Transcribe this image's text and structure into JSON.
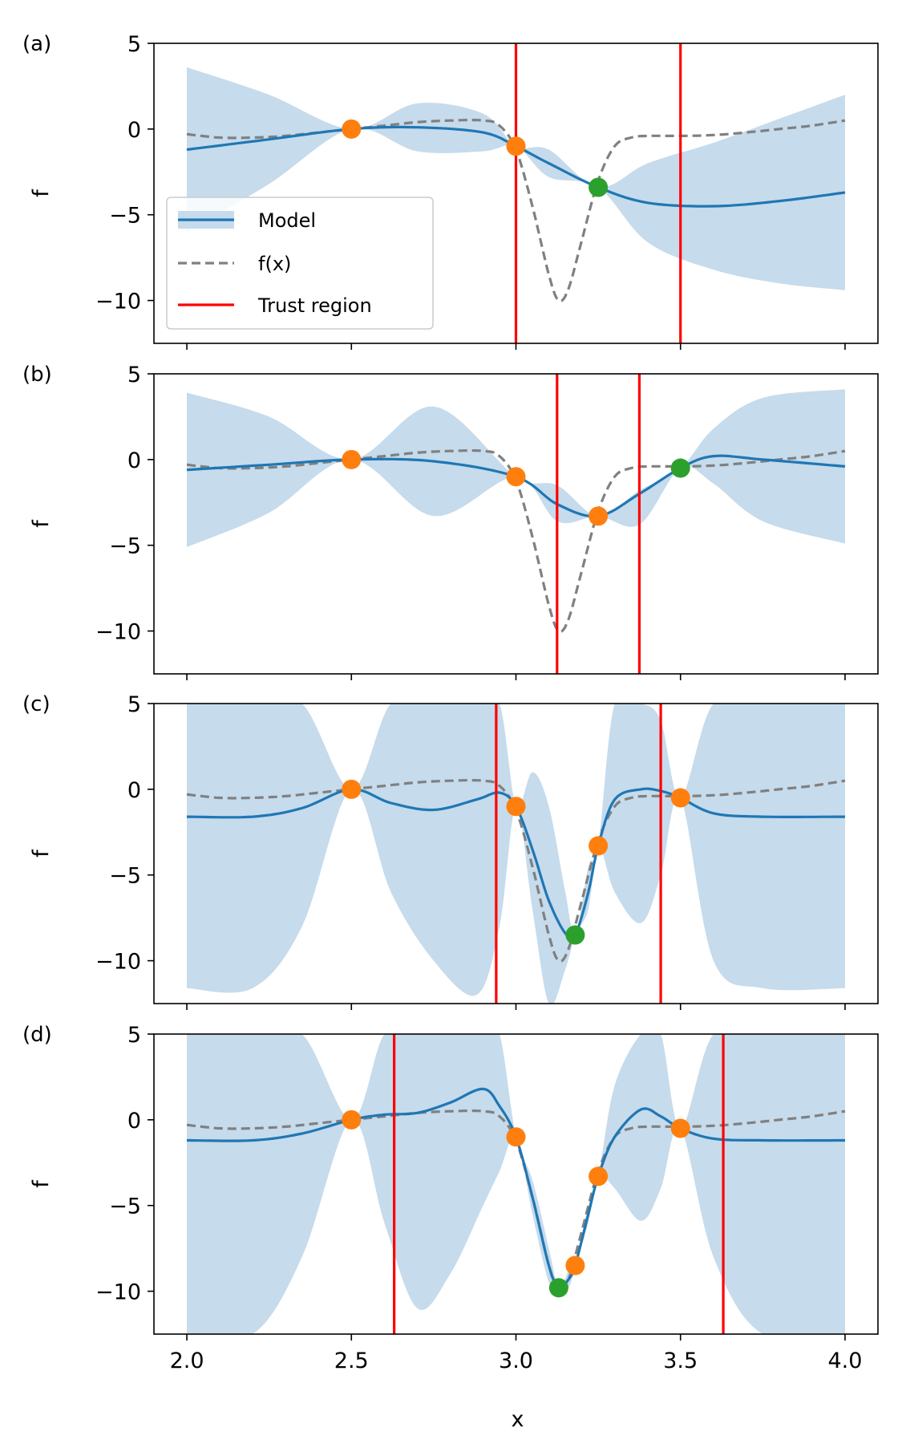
{
  "chart_data": {
    "type": "line",
    "x_label": "x",
    "y_label": "f",
    "xlim": [
      1.9,
      4.1
    ],
    "ylim": [
      -12.5,
      5
    ],
    "x_ticks": [
      2.0,
      2.5,
      3.0,
      3.5,
      4.0
    ],
    "x_tick_labels": [
      "2.0",
      "2.5",
      "3.0",
      "3.5",
      "4.0"
    ],
    "y_ticks": [
      5,
      0,
      -5,
      -10
    ],
    "y_tick_labels": [
      "5",
      "0",
      "−5",
      "−10"
    ],
    "legend": {
      "location": "lower-left of panel (a)",
      "entries": [
        {
          "label": "Model",
          "kind": "line-with-band"
        },
        {
          "label": "f(x)",
          "kind": "dashed"
        },
        {
          "label": "Trust region",
          "kind": "red-line"
        }
      ]
    },
    "colors": {
      "model": "#1f77b4",
      "band": "#c6dbec",
      "true_f": "#808080",
      "trust_region": "#ff0000",
      "observed": "#ff7f0e",
      "new_point": "#2ca02c"
    },
    "true_function": {
      "name": "f(x)",
      "x": [
        2.0,
        2.1,
        2.2,
        2.3,
        2.4,
        2.5,
        2.6,
        2.7,
        2.8,
        2.9,
        2.95,
        3.0,
        3.05,
        3.1,
        3.13,
        3.16,
        3.2,
        3.25,
        3.3,
        3.35,
        3.4,
        3.5,
        3.6,
        3.7,
        3.8,
        3.9,
        4.0
      ],
      "y": [
        -0.3,
        -0.5,
        -0.5,
        -0.4,
        -0.2,
        0.0,
        0.2,
        0.4,
        0.5,
        0.5,
        0.2,
        -1.2,
        -4.5,
        -8.5,
        -10.0,
        -9.3,
        -6.5,
        -3.0,
        -1.0,
        -0.5,
        -0.4,
        -0.4,
        -0.35,
        -0.2,
        0.0,
        0.2,
        0.5
      ]
    },
    "panels": [
      {
        "label": "(a)",
        "trust_region": [
          3.0,
          3.5
        ],
        "model": {
          "x": [
            2.0,
            2.25,
            2.5,
            2.7,
            2.9,
            3.0,
            3.1,
            3.25,
            3.4,
            3.6,
            3.8,
            4.0
          ],
          "mean": [
            -1.2,
            -0.6,
            0.0,
            0.1,
            -0.2,
            -1.0,
            -2.0,
            -3.4,
            -4.3,
            -4.5,
            -4.2,
            -3.7
          ],
          "upper": [
            3.6,
            2.0,
            0.0,
            1.5,
            0.9,
            -1.0,
            -1.2,
            -3.4,
            -2.0,
            -0.8,
            0.6,
            2.0
          ],
          "lower": [
            -6.0,
            -3.2,
            0.0,
            -1.3,
            -1.3,
            -1.0,
            -2.8,
            -3.4,
            -6.6,
            -8.2,
            -9.0,
            -9.4
          ]
        },
        "observed_points": [
          {
            "x": 2.5,
            "y": 0.0
          },
          {
            "x": 3.0,
            "y": -1.0
          }
        ],
        "new_point": {
          "x": 3.25,
          "y": -3.4
        }
      },
      {
        "label": "(b)",
        "trust_region": [
          3.125,
          3.375
        ],
        "model": {
          "x": [
            2.0,
            2.25,
            2.5,
            2.75,
            3.0,
            3.125,
            3.25,
            3.375,
            3.5,
            3.6,
            3.75,
            4.0
          ],
          "mean": [
            -0.6,
            -0.3,
            0.0,
            -0.1,
            -1.0,
            -2.6,
            -3.3,
            -2.0,
            -0.5,
            0.2,
            0.0,
            -0.4
          ],
          "upper": [
            3.9,
            2.5,
            0.0,
            3.1,
            -1.0,
            -1.5,
            -3.3,
            -1.8,
            -0.5,
            1.8,
            3.6,
            4.1
          ],
          "lower": [
            -5.1,
            -3.1,
            0.0,
            -3.3,
            -1.0,
            -3.6,
            -3.3,
            -3.8,
            -0.5,
            -1.4,
            -3.6,
            -4.9
          ]
        },
        "observed_points": [
          {
            "x": 2.5,
            "y": 0.0
          },
          {
            "x": 3.0,
            "y": -1.0
          },
          {
            "x": 3.25,
            "y": -3.3
          }
        ],
        "new_point": {
          "x": 3.5,
          "y": -0.5
        }
      },
      {
        "label": "(c)",
        "trust_region": [
          2.94,
          3.44
        ],
        "model": {
          "x": [
            2.0,
            2.2,
            2.35,
            2.5,
            2.62,
            2.75,
            2.88,
            2.95,
            3.0,
            3.05,
            3.1,
            3.15,
            3.18,
            3.22,
            3.25,
            3.3,
            3.38,
            3.44,
            3.5,
            3.6,
            3.75,
            4.0
          ],
          "mean": [
            -1.6,
            -1.6,
            -1.1,
            0.0,
            -0.8,
            -1.2,
            -0.6,
            -0.2,
            -1.0,
            -3.5,
            -6.5,
            -8.4,
            -8.5,
            -6.0,
            -3.3,
            -0.6,
            0.0,
            -0.1,
            -0.5,
            -1.4,
            -1.6,
            -1.6
          ],
          "upper": [
            5,
            5,
            5,
            0.0,
            5,
            5,
            5,
            5,
            -1.0,
            1.0,
            -1.0,
            -6.0,
            -8.5,
            -4.5,
            -3.3,
            5,
            5,
            4.0,
            -0.5,
            5,
            5,
            5
          ],
          "lower": [
            -11.6,
            -11.6,
            -8.0,
            0.0,
            -6.0,
            -10.0,
            -12.0,
            -8.0,
            -1.0,
            -7.0,
            -12.5,
            -10.5,
            -8.5,
            -7.0,
            -3.3,
            -6.0,
            -7.8,
            -5.0,
            -0.5,
            -10.0,
            -11.6,
            -11.6
          ]
        },
        "observed_points": [
          {
            "x": 2.5,
            "y": 0.0
          },
          {
            "x": 3.0,
            "y": -1.0
          },
          {
            "x": 3.25,
            "y": -3.3
          },
          {
            "x": 3.5,
            "y": -0.5
          }
        ],
        "new_point": {
          "x": 3.18,
          "y": -8.5
        }
      },
      {
        "label": "(d)",
        "trust_region": [
          2.63,
          3.63
        ],
        "model": {
          "x": [
            2.0,
            2.2,
            2.35,
            2.5,
            2.6,
            2.7,
            2.8,
            2.9,
            2.95,
            3.0,
            3.05,
            3.1,
            3.13,
            3.16,
            3.18,
            3.22,
            3.25,
            3.3,
            3.38,
            3.44,
            3.5,
            3.6,
            3.75,
            4.0
          ],
          "mean": [
            -1.2,
            -1.2,
            -0.8,
            0.0,
            0.3,
            0.4,
            1.0,
            1.8,
            0.8,
            -1.0,
            -4.5,
            -8.5,
            -9.8,
            -9.3,
            -8.5,
            -5.5,
            -3.3,
            -1.0,
            0.6,
            0.2,
            -0.5,
            -1.1,
            -1.2,
            -1.2
          ],
          "upper": [
            5,
            5,
            5,
            0.0,
            5,
            5,
            5,
            5,
            5,
            -1.0,
            -3.5,
            -7.5,
            -9.8,
            -8.8,
            -8.5,
            -5.0,
            -3.3,
            2.0,
            5,
            5,
            -0.5,
            5,
            5,
            5
          ],
          "lower": [
            -12.5,
            -12.5,
            -8.0,
            0.0,
            -6.0,
            -11.0,
            -9.0,
            -5.0,
            -3.0,
            -1.0,
            -5.5,
            -9.5,
            -9.8,
            -9.8,
            -8.5,
            -6.0,
            -3.3,
            -4.0,
            -5.9,
            -4.0,
            -0.5,
            -8.0,
            -12.5,
            -12.5
          ]
        },
        "observed_points": [
          {
            "x": 2.5,
            "y": 0.0
          },
          {
            "x": 3.0,
            "y": -1.0
          },
          {
            "x": 3.25,
            "y": -3.3
          },
          {
            "x": 3.5,
            "y": -0.5
          },
          {
            "x": 3.18,
            "y": -8.5
          }
        ],
        "new_point": {
          "x": 3.13,
          "y": -9.8
        }
      }
    ]
  }
}
